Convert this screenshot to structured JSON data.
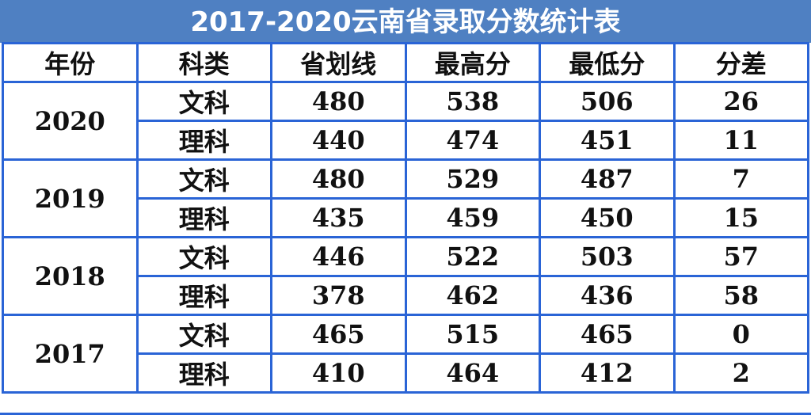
{
  "title": "2017-2020云南省录取分数统计表",
  "headers": [
    "年份",
    "科类",
    "省划线",
    "最高分",
    "最低分",
    "分差"
  ],
  "groups": [
    {
      "year": "2020",
      "rows": [
        [
          "文科",
          "480",
          "538",
          "506",
          "26"
        ],
        [
          "理科",
          "440",
          "474",
          "451",
          "11"
        ]
      ]
    },
    {
      "year": "2019",
      "rows": [
        [
          "文科",
          "480",
          "529",
          "487",
          "7"
        ],
        [
          "理科",
          "435",
          "459",
          "450",
          "15"
        ]
      ]
    },
    {
      "year": "2018",
      "rows": [
        [
          "文科",
          "446",
          "522",
          "503",
          "57"
        ],
        [
          "理科",
          "378",
          "462",
          "436",
          "58"
        ]
      ]
    },
    {
      "year": "2017",
      "rows": [
        [
          "文科",
          "465",
          "515",
          "465",
          "0"
        ],
        [
          "理科",
          "410",
          "464",
          "412",
          "2"
        ]
      ]
    }
  ],
  "colors": {
    "title_bg": "#4f80c2",
    "border": "#2a64d6"
  }
}
